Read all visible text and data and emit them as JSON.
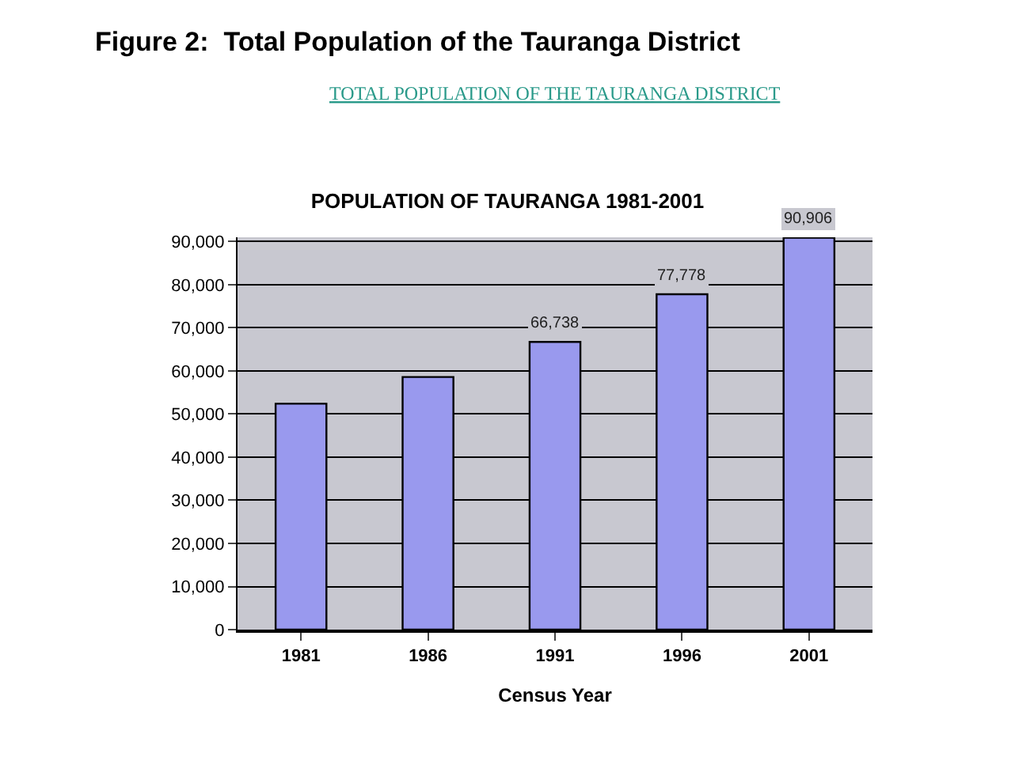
{
  "chart_data": {
    "type": "bar",
    "title": "POPULATION OF TAURANGA 1981-2001",
    "xlabel": "Census Year",
    "annotations": [
      "Figure 2:  Total Population of the Tauranga District",
      "TOTAL POPULATION OF THE TAURANGA DISTRICT"
    ],
    "categories": [
      "1981",
      "1986",
      "1991",
      "1996",
      "2001"
    ],
    "values": [
      52400,
      58600,
      66738,
      77778,
      90906
    ],
    "value_labels": [
      null,
      null,
      "66,738",
      "77,778",
      "90,906"
    ],
    "color": "#9999ee",
    "ylim": [
      0,
      91000
    ],
    "yticks": [
      0,
      {
        "value": 10000,
        "label": "10,000"
      },
      {
        "value": 20000,
        "label": "20,000"
      },
      {
        "value": 30000,
        "label": "30,000"
      },
      {
        "value": 40000,
        "label": "40,000"
      },
      {
        "value": 50000,
        "label": "50,000"
      },
      {
        "value": 60000,
        "label": "60,000"
      },
      {
        "value": 70000,
        "label": "70,000"
      },
      {
        "value": 80000,
        "label": "80,000"
      },
      {
        "value": 90000,
        "label": "90,000"
      }
    ],
    "grid": "y"
  }
}
